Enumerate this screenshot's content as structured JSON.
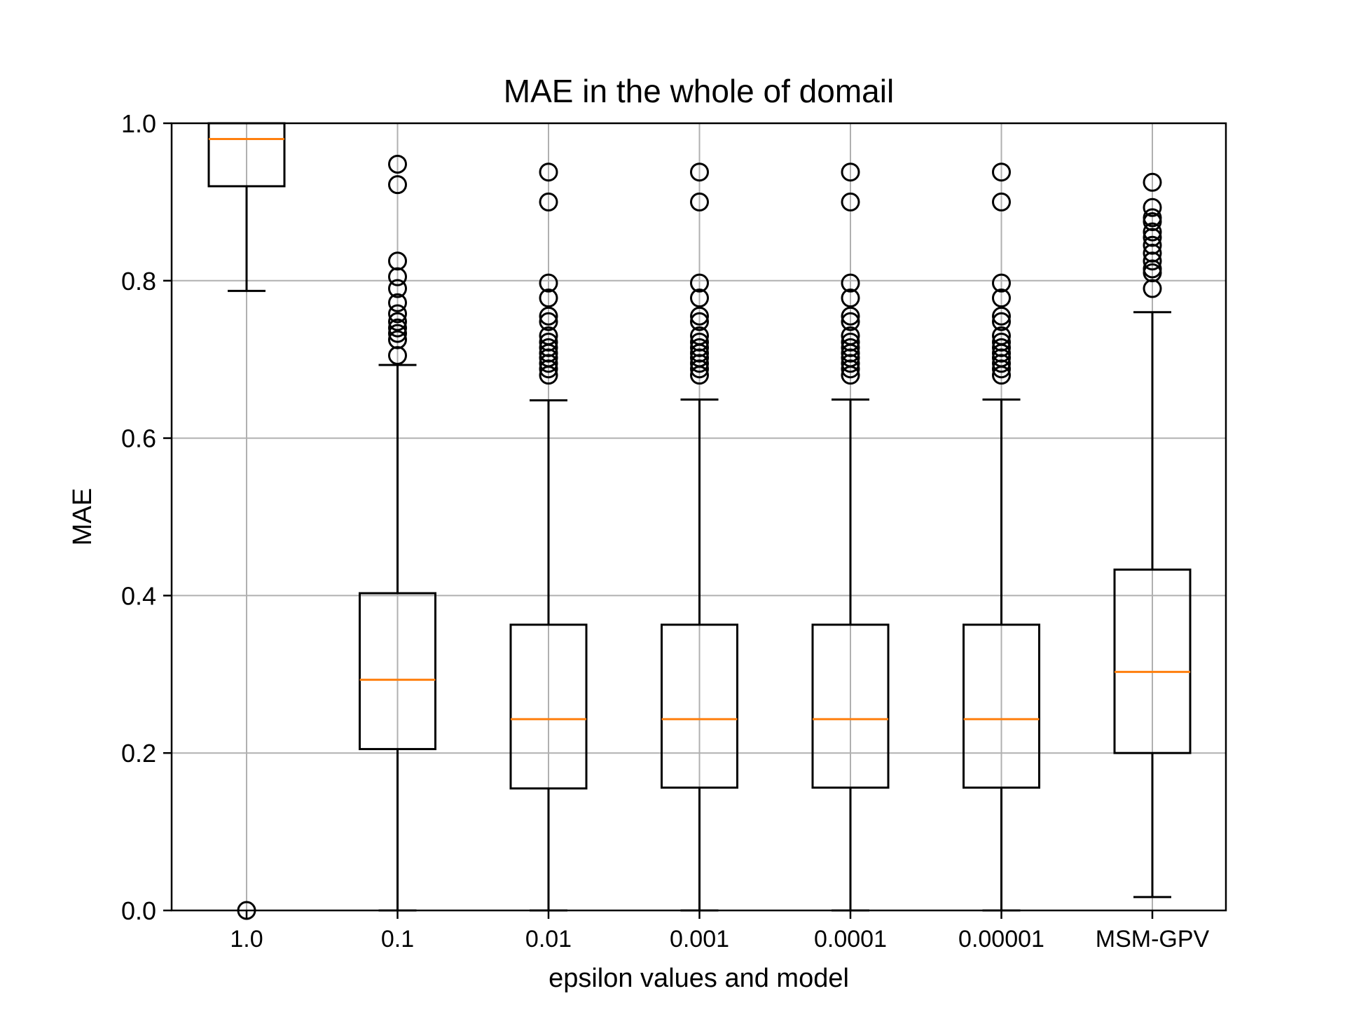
{
  "chart_data": {
    "type": "box",
    "title": "MAE in the whole of domail",
    "xlabel": "epsilon values and model",
    "ylabel": "MAE",
    "ylim": [
      0.0,
      1.0
    ],
    "yticks": [
      "0.0",
      "0.2",
      "0.4",
      "0.6",
      "0.8",
      "1.0"
    ],
    "grid": true,
    "categories": [
      "1.0",
      "0.1",
      "0.01",
      "0.001",
      "0.0001",
      "0.00001",
      "MSM-GPV"
    ],
    "boxes": [
      {
        "category": "1.0",
        "whislo": 0.787,
        "q1": 0.92,
        "med": 0.98,
        "q3": 1.0,
        "whishi": 1.0,
        "fliers": [
          0.0
        ]
      },
      {
        "category": "0.1",
        "whislo": 0.0,
        "q1": 0.205,
        "med": 0.293,
        "q3": 0.403,
        "whishi": 0.693,
        "fliers": [
          0.705,
          0.725,
          0.733,
          0.74,
          0.748,
          0.758,
          0.772,
          0.79,
          0.805,
          0.825,
          0.922,
          0.948
        ]
      },
      {
        "category": "0.01",
        "whislo": 0.0,
        "q1": 0.155,
        "med": 0.243,
        "q3": 0.363,
        "whishi": 0.648,
        "fliers": [
          0.68,
          0.688,
          0.695,
          0.702,
          0.708,
          0.715,
          0.722,
          0.73,
          0.748,
          0.755,
          0.778,
          0.797,
          0.9,
          0.938
        ]
      },
      {
        "category": "0.001",
        "whislo": 0.0,
        "q1": 0.156,
        "med": 0.243,
        "q3": 0.363,
        "whishi": 0.649,
        "fliers": [
          0.68,
          0.688,
          0.695,
          0.702,
          0.708,
          0.715,
          0.722,
          0.73,
          0.748,
          0.755,
          0.778,
          0.797,
          0.9,
          0.938
        ]
      },
      {
        "category": "0.0001",
        "whislo": 0.0,
        "q1": 0.156,
        "med": 0.243,
        "q3": 0.363,
        "whishi": 0.649,
        "fliers": [
          0.68,
          0.688,
          0.695,
          0.702,
          0.708,
          0.715,
          0.722,
          0.73,
          0.748,
          0.755,
          0.778,
          0.797,
          0.9,
          0.938
        ]
      },
      {
        "category": "0.00001",
        "whislo": 0.0,
        "q1": 0.156,
        "med": 0.243,
        "q3": 0.363,
        "whishi": 0.649,
        "fliers": [
          0.68,
          0.688,
          0.695,
          0.702,
          0.708,
          0.715,
          0.722,
          0.73,
          0.748,
          0.755,
          0.778,
          0.797,
          0.9,
          0.938
        ]
      },
      {
        "category": "MSM-GPV",
        "whislo": 0.017,
        "q1": 0.2,
        "med": 0.303,
        "q3": 0.433,
        "whishi": 0.76,
        "fliers": [
          0.79,
          0.81,
          0.815,
          0.825,
          0.835,
          0.845,
          0.855,
          0.862,
          0.875,
          0.88,
          0.893,
          0.925
        ]
      }
    ],
    "colors": {
      "box": "#000000",
      "median": "#ff7f0e",
      "grid": "#b0b0b0",
      "flier": "#000000"
    }
  }
}
